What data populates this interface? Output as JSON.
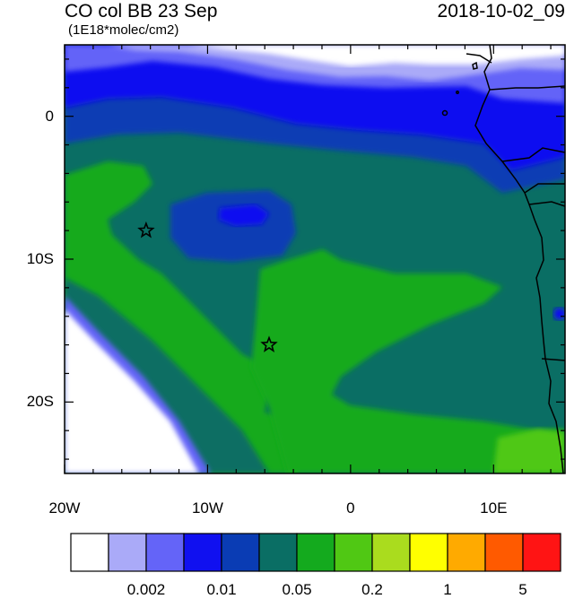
{
  "header": {
    "title": "CO col BB 23 Sep",
    "datetime": "2018-10-02_09",
    "units": "(1E18*molec/cm2)"
  },
  "map": {
    "lon_range": [
      -20,
      15
    ],
    "lat_range": [
      -25,
      5
    ],
    "x_ticks": [
      {
        "lon": -20,
        "label": "20W"
      },
      {
        "lon": -10,
        "label": "10W"
      },
      {
        "lon": 0,
        "label": "0"
      },
      {
        "lon": 10,
        "label": "10E"
      }
    ],
    "y_ticks": [
      {
        "lat": 0,
        "label": "0"
      },
      {
        "lat": -10,
        "label": "10S"
      },
      {
        "lat": -20,
        "label": "20S"
      }
    ],
    "markers": [
      {
        "name": "star-marker-st-helena-area",
        "lon": -14.3,
        "lat": -8.0
      },
      {
        "name": "star-marker-south",
        "lon": -5.7,
        "lat": -16.0
      }
    ]
  },
  "colorbar": {
    "colors": [
      "#ffffff",
      "#aaaaf8",
      "#6464f8",
      "#1010f0",
      "#0a3cb4",
      "#0a6e64",
      "#14aa1e",
      "#50c814",
      "#aadc1e",
      "#ffff00",
      "#ffaa00",
      "#ff5a00",
      "#ff1414"
    ],
    "labels": [
      {
        "text": "0.002",
        "after_box": 2
      },
      {
        "text": "0.01",
        "after_box": 4
      },
      {
        "text": "0.05",
        "after_box": 6
      },
      {
        "text": "0.2",
        "after_box": 8
      },
      {
        "text": "1",
        "after_box": 10
      },
      {
        "text": "5",
        "after_box": 12
      }
    ]
  }
}
